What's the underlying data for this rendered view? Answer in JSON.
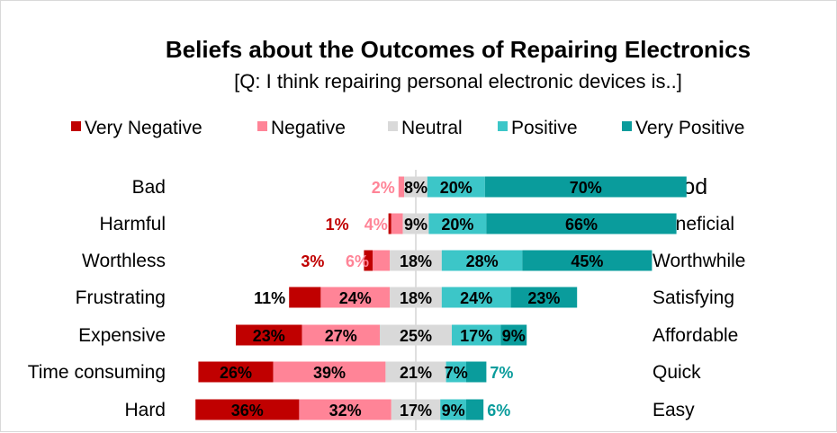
{
  "chart_data": {
    "type": "bar",
    "orientation": "horizontal",
    "stacked": "diverging",
    "title": "Beliefs about the Outcomes of Repairing Electronics",
    "subtitle": "[Q: I think repairing personal electronic devices is..]",
    "legend_position": "top",
    "grid": false,
    "series": [
      {
        "name": "Very Negative",
        "color": "#c00000",
        "label_color": "#c00000"
      },
      {
        "name": "Negative",
        "color": "#ff8497",
        "label_color": "#ff8497"
      },
      {
        "name": "Neutral",
        "color": "#d9d9d9",
        "label_color": "#000000"
      },
      {
        "name": "Positive",
        "color": "#3cc6c8",
        "label_color": "#3cc6c8"
      },
      {
        "name": "Very Positive",
        "color": "#0a9c9c",
        "label_color": "#0a9c9c"
      }
    ],
    "rows": [
      {
        "left_label": "Bad",
        "right_label": "Good",
        "values": [
          0,
          2,
          8,
          20,
          70
        ],
        "labels": [
          "",
          "2%",
          "8%",
          "20%",
          "70%"
        ]
      },
      {
        "left_label": "Harmful",
        "right_label": "Beneficial",
        "values": [
          1,
          4,
          9,
          20,
          66
        ],
        "labels": [
          "1%",
          "4%",
          "9%",
          "20%",
          "66%"
        ]
      },
      {
        "left_label": "Worthless",
        "right_label": "Worthwhile",
        "values": [
          3,
          6,
          18,
          28,
          45
        ],
        "labels": [
          "3%",
          "6%",
          "18%",
          "28%",
          "45%"
        ]
      },
      {
        "left_label": "Frustrating",
        "right_label": "Satisfying",
        "values": [
          11,
          24,
          18,
          24,
          23
        ],
        "labels": [
          "11%",
          "24%",
          "18%",
          "24%",
          "23%"
        ]
      },
      {
        "left_label": "Expensive",
        "right_label": "Affordable",
        "values": [
          23,
          27,
          25,
          17,
          9
        ],
        "labels": [
          "23%",
          "27%",
          "25%",
          "17%",
          "9%"
        ]
      },
      {
        "left_label": "Time consuming",
        "right_label": "Quick",
        "values": [
          26,
          39,
          21,
          7,
          7
        ],
        "labels": [
          "26%",
          "39%",
          "21%",
          "7%",
          "7%"
        ]
      },
      {
        "left_label": "Hard",
        "right_label": "Easy",
        "values": [
          36,
          32,
          17,
          9,
          6
        ],
        "labels": [
          "36%",
          "32%",
          "17%",
          "9%",
          "6%"
        ]
      }
    ]
  }
}
